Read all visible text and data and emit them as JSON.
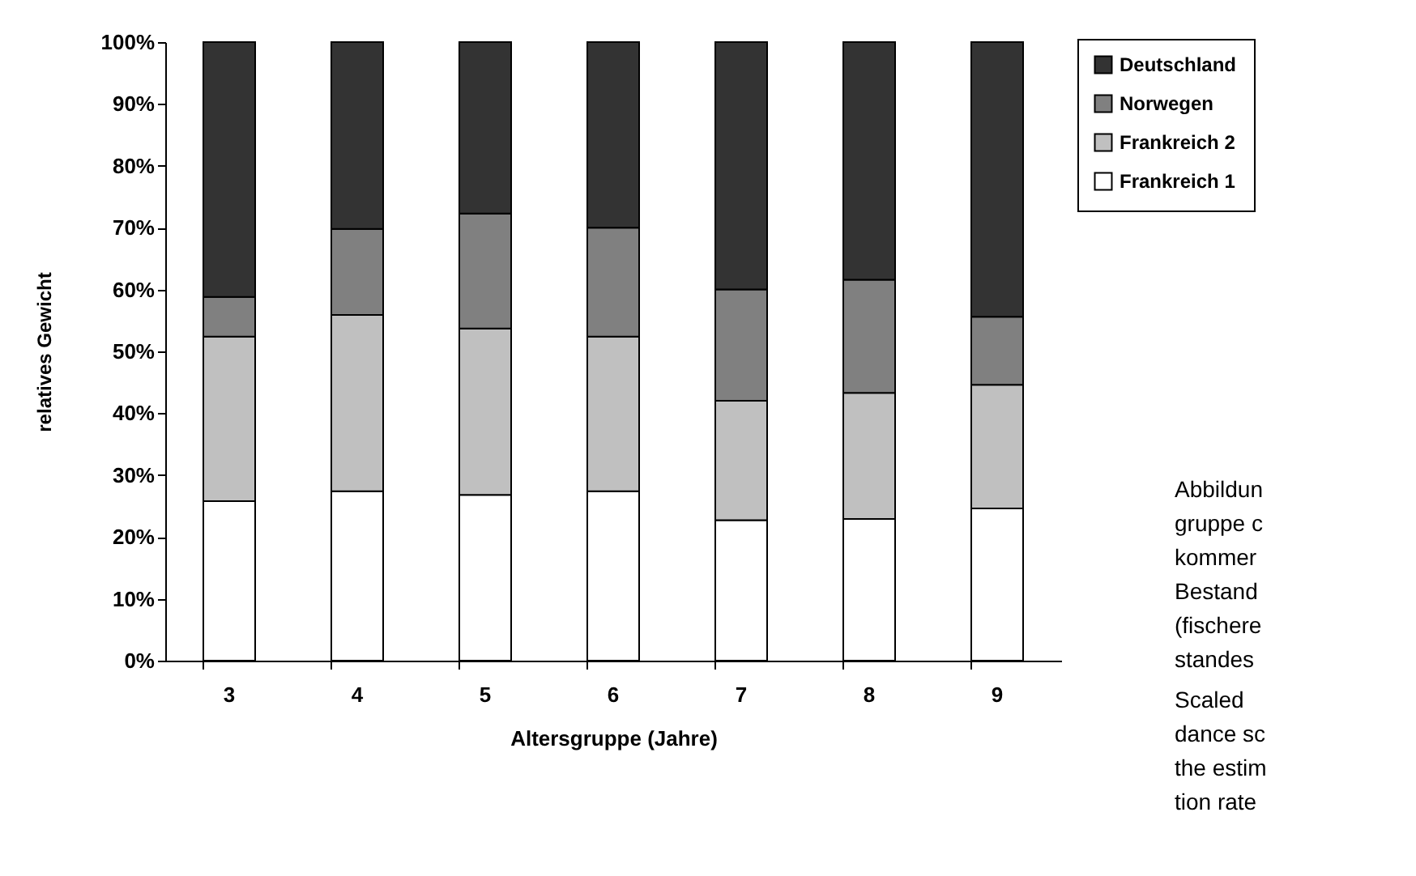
{
  "chart_data": {
    "type": "bar",
    "stacked": true,
    "xlabel": "Altersgruppe (Jahre)",
    "ylabel": "relatives Gewicht",
    "categories": [
      "3",
      "4",
      "5",
      "6",
      "7",
      "8",
      "9"
    ],
    "series": [
      {
        "name": "Frankreich 1",
        "color": "#ffffff",
        "values": [
          25.8,
          27.4,
          26.8,
          27.4,
          22.7,
          22.9,
          24.6
        ]
      },
      {
        "name": "Frankreich 2",
        "color": "#c0c0c0",
        "values": [
          26.6,
          28.5,
          26.9,
          25.0,
          19.3,
          20.4,
          20.0
        ]
      },
      {
        "name": "Norwegen",
        "color": "#808080",
        "values": [
          6.4,
          13.9,
          18.6,
          17.6,
          18.0,
          18.3,
          11.0
        ]
      },
      {
        "name": "Deutschland",
        "color": "#333333",
        "values": [
          41.2,
          30.2,
          27.7,
          30.0,
          40.0,
          38.4,
          44.4
        ]
      }
    ],
    "ylim": [
      0,
      100
    ],
    "yticks": [
      {
        "value": 0,
        "label": "0%"
      },
      {
        "value": 10,
        "label": "10%"
      },
      {
        "value": 20,
        "label": "20%"
      },
      {
        "value": 30,
        "label": "30%"
      },
      {
        "value": 40,
        "label": "40%"
      },
      {
        "value": 50,
        "label": "50%"
      },
      {
        "value": 60,
        "label": "60%"
      },
      {
        "value": 70,
        "label": "70%"
      },
      {
        "value": 80,
        "label": "80%"
      },
      {
        "value": 90,
        "label": "90%"
      },
      {
        "value": 100,
        "label": "100%"
      }
    ],
    "grid": false,
    "legend": "top right",
    "annotations": [
      "Abbildun\ngruppe c\nkommer\nBestand\n(fischere\nstandes",
      "Scaled\ndance sc\nthe estim\ntion rate"
    ]
  }
}
